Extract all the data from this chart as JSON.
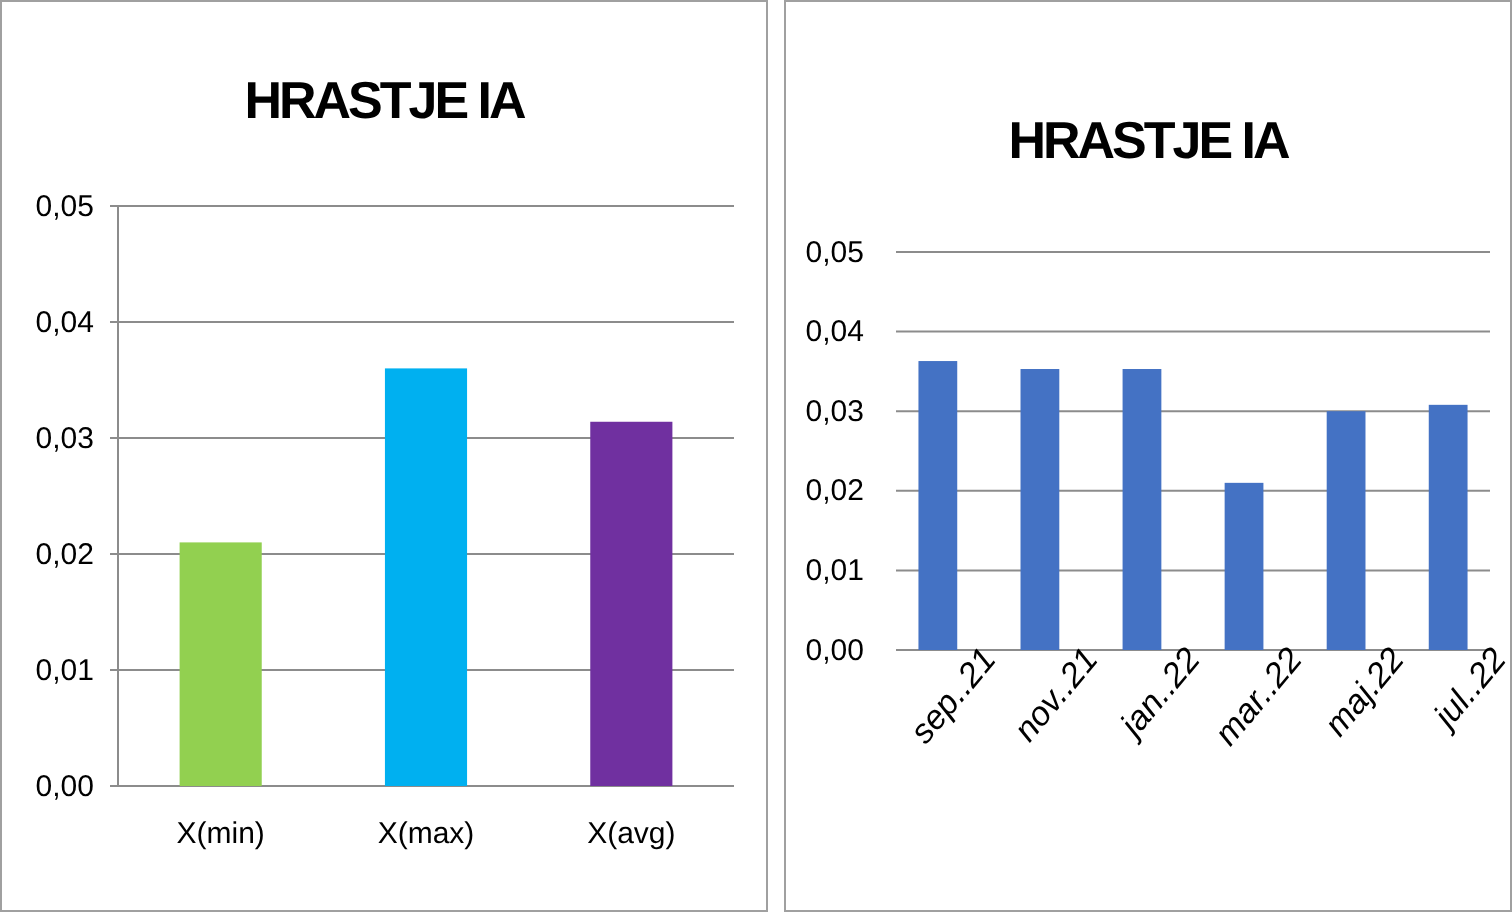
{
  "chart_data": [
    {
      "type": "bar",
      "title": "HRASTJE IA",
      "categories": [
        "X(min)",
        "X(max)",
        "X(avg)"
      ],
      "values": [
        0.021,
        0.036,
        0.0314
      ],
      "colors": [
        "#92d050",
        "#00b0f0",
        "#7030a0"
      ],
      "ylim": [
        0,
        0.05
      ],
      "yticks": [
        {
          "value": 0,
          "label": "0,00"
        },
        {
          "value": 0.01,
          "label": "0,01"
        },
        {
          "value": 0.02,
          "label": "0,02"
        },
        {
          "value": 0.03,
          "label": "0,03"
        },
        {
          "value": 0.04,
          "label": "0,04"
        },
        {
          "value": 0.05,
          "label": "0,05"
        }
      ],
      "grid": "y"
    },
    {
      "type": "bar",
      "title": "HRASTJE IA",
      "categories": [
        "sep..21",
        "nov..21",
        "jan..22",
        "mar..22",
        "maj.22",
        "jul..22"
      ],
      "values": [
        0.0363,
        0.0353,
        0.0353,
        0.021,
        0.03,
        0.0308
      ],
      "color": "#4472c4",
      "ylim": [
        0,
        0.05
      ],
      "yticks": [
        {
          "value": 0,
          "label": "0,00"
        },
        {
          "value": 0.01,
          "label": "0,01"
        },
        {
          "value": 0.02,
          "label": "0,02"
        },
        {
          "value": 0.03,
          "label": "0,03"
        },
        {
          "value": 0.04,
          "label": "0,04"
        },
        {
          "value": 0.05,
          "label": "0,05"
        }
      ],
      "grid": "y"
    }
  ]
}
